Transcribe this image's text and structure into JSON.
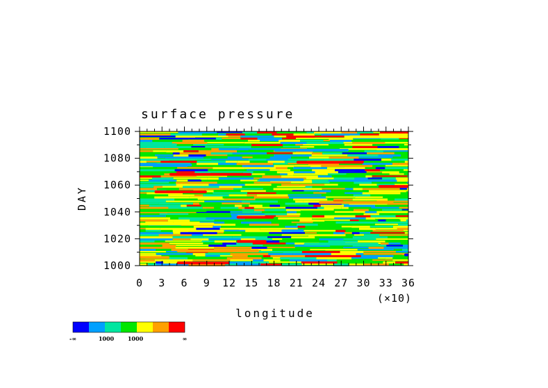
{
  "chart_data": {
    "type": "heatmap",
    "title": "surface pressure",
    "xlabel": "longitude",
    "x_multiplier_label": "(×10)",
    "ylabel": "DAY",
    "xlim": [
      0,
      36
    ],
    "ylim": [
      1000,
      1100
    ],
    "x_ticks": [
      "0",
      "3",
      "6",
      "9",
      "12",
      "15",
      "18",
      "21",
      "24",
      "27",
      "30",
      "33",
      "36"
    ],
    "y_ticks": [
      "1000",
      "1020",
      "1040",
      "1060",
      "1080",
      "1100"
    ],
    "grid": false,
    "colorbar": {
      "colors": [
        "#0000ff",
        "#00a0ff",
        "#00e6a0",
        "#00e600",
        "#ffff00",
        "#ffa000",
        "#ff0000"
      ],
      "labels": [
        "-∞",
        "1000",
        "1000",
        "∞"
      ]
    },
    "field_bands": [
      {
        "y": 1002,
        "x_start": 5,
        "x_end": 12,
        "level": 6
      },
      {
        "y": 1006,
        "x_start": 0,
        "x_end": 4,
        "level": 5
      },
      {
        "y": 1008,
        "x_start": 36,
        "x_end": 36,
        "level": 0
      },
      {
        "y": 1011,
        "x_start": 5,
        "x_end": 16,
        "level": 5
      },
      {
        "y": 1016,
        "x_start": 22,
        "x_end": 32,
        "level": 2
      },
      {
        "y": 1018,
        "x_start": 13,
        "x_end": 17,
        "level": 6
      },
      {
        "y": 1026,
        "x_start": 19,
        "x_end": 22,
        "level": 1
      },
      {
        "y": 1031,
        "x_start": 0,
        "x_end": 10,
        "level": 4
      },
      {
        "y": 1036,
        "x_start": 13,
        "x_end": 18,
        "level": 6
      },
      {
        "y": 1041,
        "x_start": 0,
        "x_end": 9,
        "level": 3
      },
      {
        "y": 1047,
        "x_start": 24,
        "x_end": 34,
        "level": 5
      },
      {
        "y": 1055,
        "x_start": 2,
        "x_end": 9,
        "level": 6
      },
      {
        "y": 1059,
        "x_start": 32,
        "x_end": 36,
        "level": 6
      },
      {
        "y": 1064,
        "x_start": 16,
        "x_end": 22,
        "level": 1
      },
      {
        "y": 1068,
        "x_start": 4,
        "x_end": 15,
        "level": 6
      },
      {
        "y": 1075,
        "x_start": 0,
        "x_end": 7,
        "level": 1
      },
      {
        "y": 1077,
        "x_start": 21,
        "x_end": 30,
        "level": 6
      },
      {
        "y": 1086,
        "x_start": 18,
        "x_end": 28,
        "level": 1
      },
      {
        "y": 1090,
        "x_start": 0,
        "x_end": 5,
        "level": 2
      },
      {
        "y": 1096,
        "x_start": 28,
        "x_end": 36,
        "level": 4
      }
    ]
  }
}
